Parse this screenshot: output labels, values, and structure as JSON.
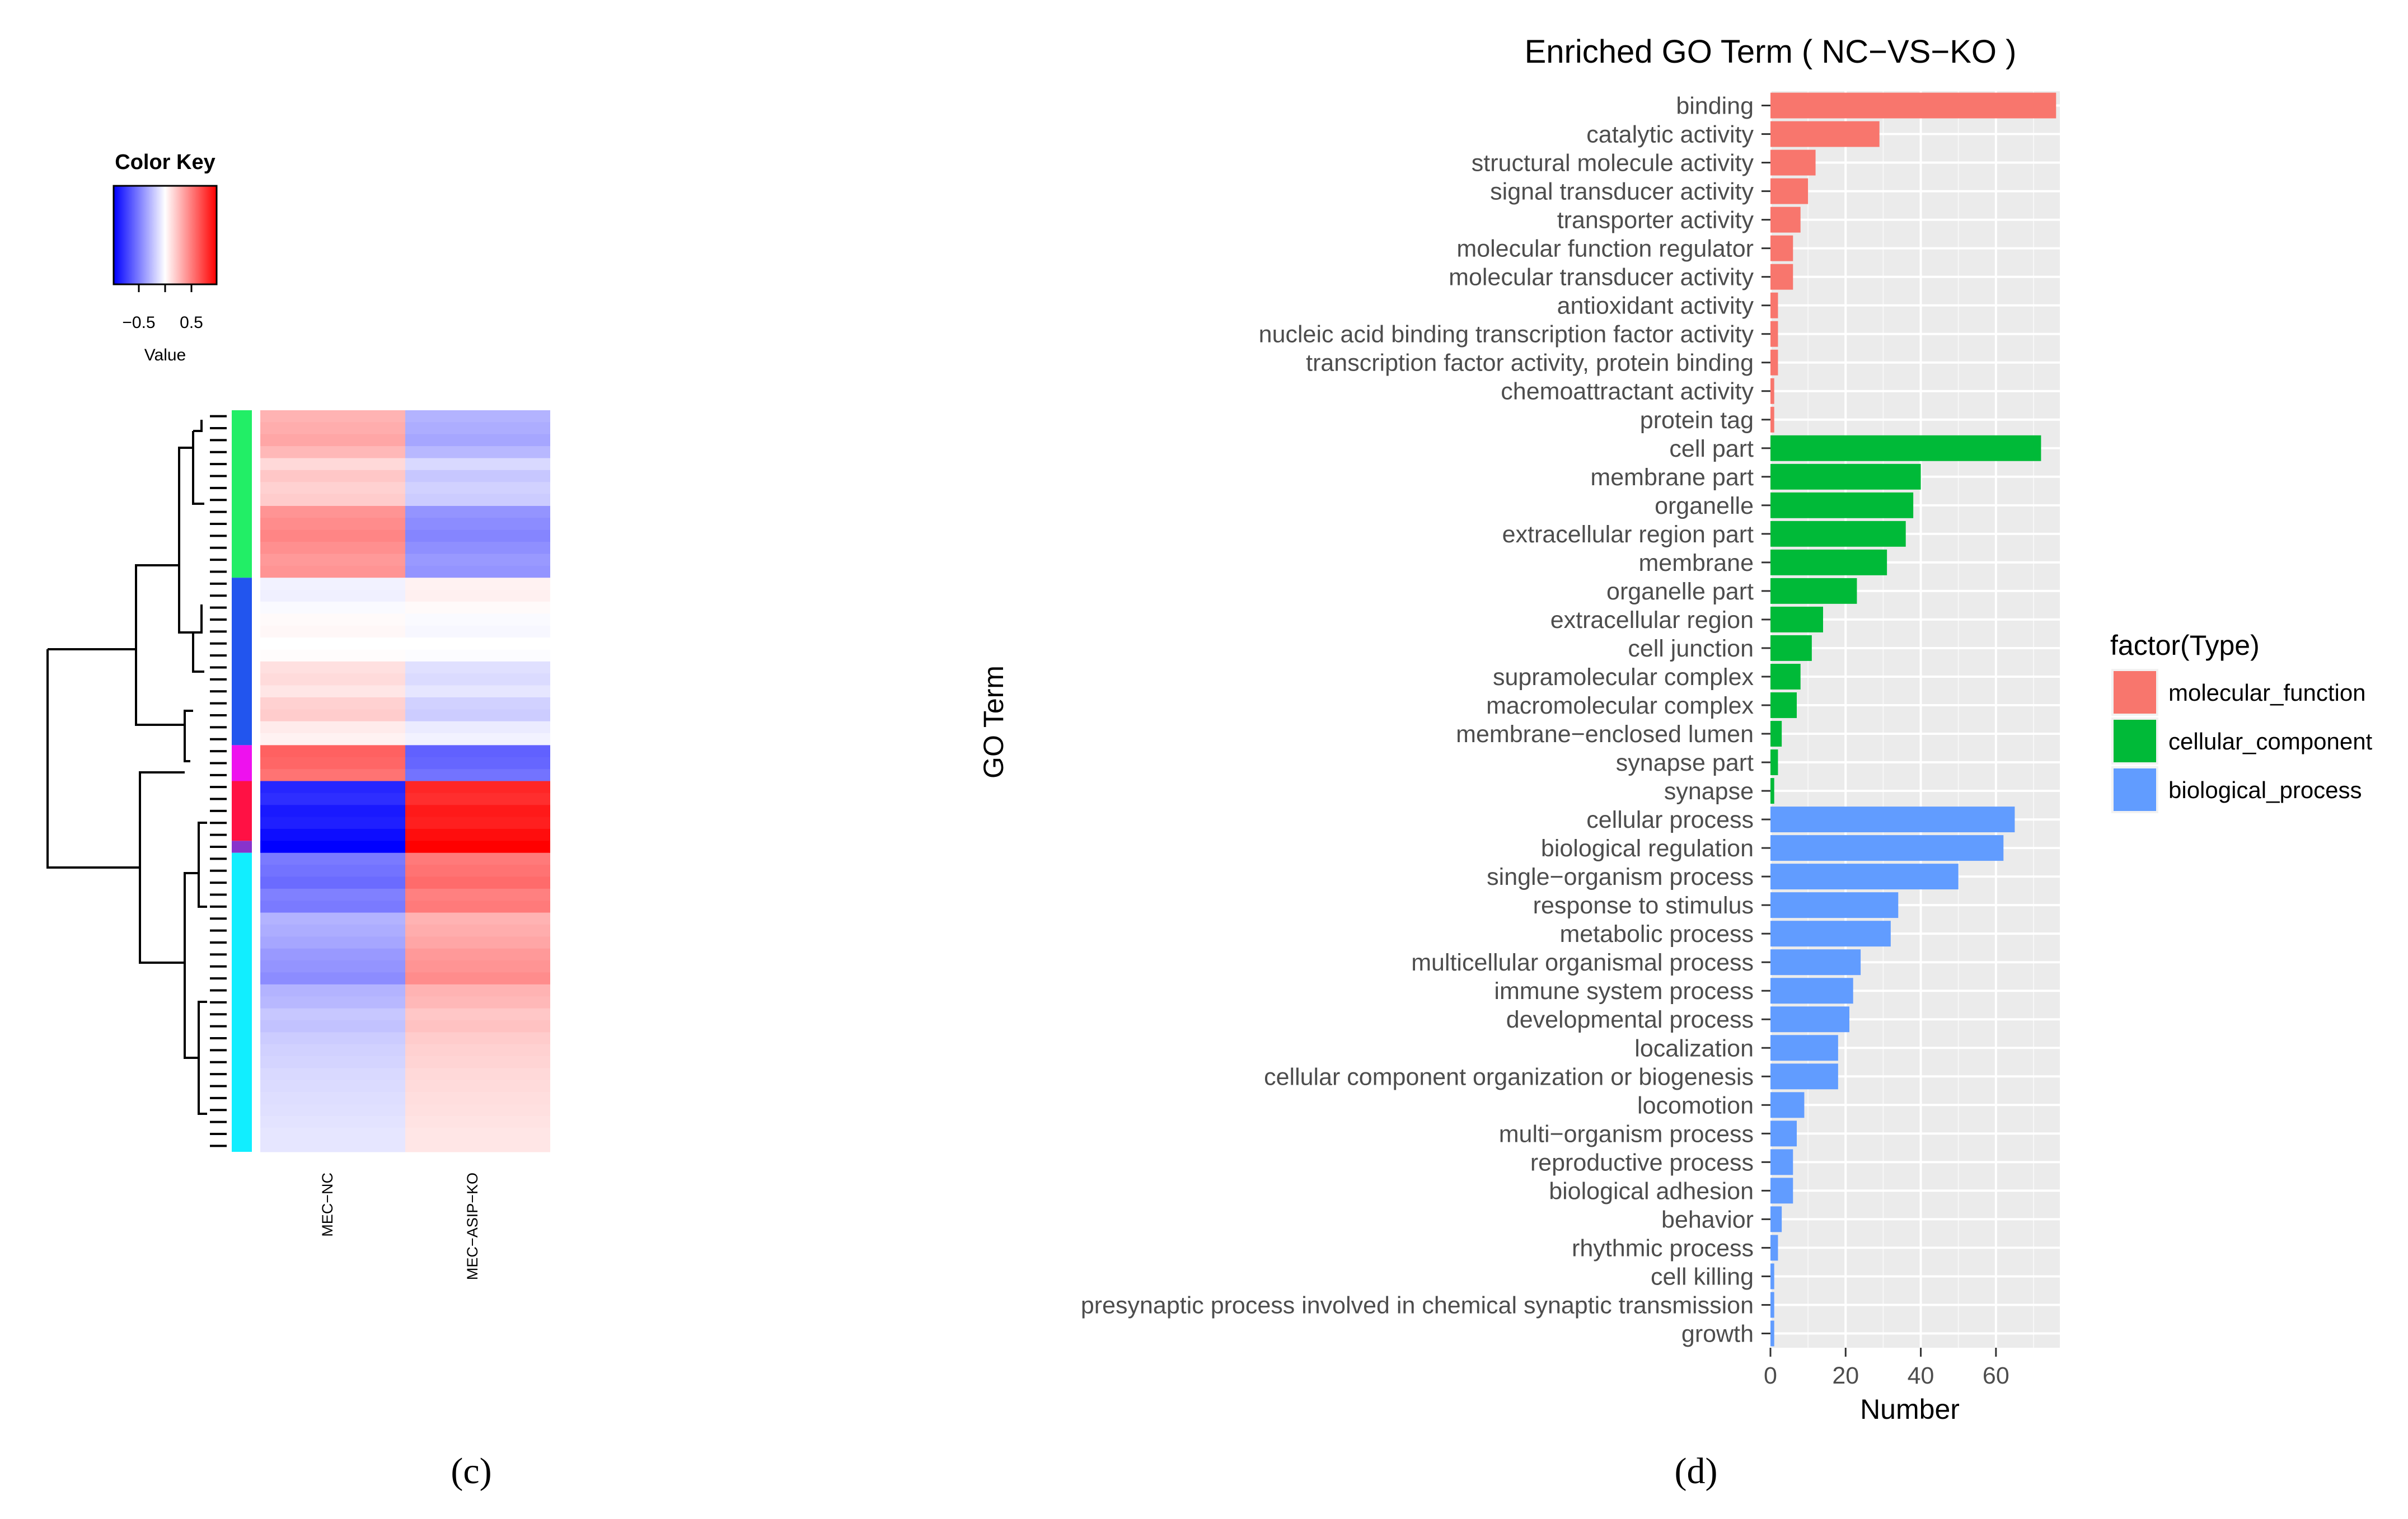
{
  "panel_c": {
    "label": "(c)",
    "color_key": {
      "title": "Color Key",
      "ticks": [
        "−0.5",
        "0.5"
      ],
      "axis_label": "Value",
      "low_color": "#0000ff",
      "mid_color": "#ffffff",
      "high_color": "#ff0000"
    },
    "columns": [
      "MEC−NC",
      "MEC−ASIP−KO"
    ],
    "clusters": [
      {
        "color": "#22ee66",
        "rows": [
          0.3,
          0.32,
          0.35,
          0.28,
          0.15,
          0.22,
          0.18,
          0.2,
          0.42,
          0.45,
          0.48,
          0.44,
          0.4,
          0.42
        ]
      },
      {
        "color": "#2255ee",
        "rows": [
          -0.05,
          -0.06,
          -0.02,
          0.02,
          0.03,
          0.0,
          0.01,
          0.12,
          0.14,
          0.1,
          0.18,
          0.2,
          0.08,
          0.05
        ]
      },
      {
        "color": "#ee11ee",
        "rows": [
          0.62,
          0.6,
          0.55
        ]
      },
      {
        "color": "#ff1144",
        "rows": [
          -0.85,
          -0.82,
          -0.9,
          -0.88,
          -0.95
        ]
      },
      {
        "color": "#8833cc",
        "rows": [
          -1.0
        ]
      },
      {
        "color": "#11eeff",
        "rows": [
          -0.52,
          -0.55,
          -0.58,
          -0.5,
          -0.52,
          -0.3,
          -0.32,
          -0.35,
          -0.4,
          -0.42,
          -0.45,
          -0.3,
          -0.28,
          -0.22,
          -0.24,
          -0.2,
          -0.18,
          -0.17,
          -0.15,
          -0.14,
          -0.13,
          -0.12,
          -0.11,
          -0.1,
          -0.1
        ]
      }
    ]
  },
  "panel_d": {
    "label": "(d)",
    "legend_title": "factor(Type)"
  },
  "chart_data": {
    "type": "bar",
    "orientation": "horizontal",
    "title": "Enriched GO Term ( NC−VS−KO )",
    "xlabel": "Number",
    "ylabel": "GO Term",
    "xlim": [
      0,
      77
    ],
    "xticks": [
      "0",
      "20",
      "40",
      "60"
    ],
    "grid": true,
    "legend_position": "right",
    "series": [
      {
        "name": "molecular_function",
        "color": "#f8766d",
        "categories": [
          "binding",
          "catalytic activity",
          "structural molecule activity",
          "signal transducer activity",
          "transporter activity",
          "molecular function regulator",
          "molecular transducer activity",
          "antioxidant activity",
          "nucleic acid binding transcription factor activity",
          "transcription factor activity, protein binding",
          "chemoattractant activity",
          "protein tag"
        ],
        "values": [
          76,
          29,
          12,
          10,
          8,
          6,
          6,
          2,
          2,
          2,
          1,
          1
        ]
      },
      {
        "name": "cellular_component",
        "color": "#00ba38",
        "categories": [
          "cell part",
          "membrane part",
          "organelle",
          "extracellular region part",
          "membrane",
          "organelle part",
          "extracellular region",
          "cell junction",
          "supramolecular complex",
          "macromolecular complex",
          "membrane−enclosed lumen",
          "synapse part",
          "synapse"
        ],
        "values": [
          72,
          40,
          38,
          36,
          31,
          23,
          14,
          11,
          8,
          7,
          3,
          2,
          1
        ]
      },
      {
        "name": "biological_process",
        "color": "#619cff",
        "categories": [
          "cellular process",
          "biological regulation",
          "single−organism process",
          "response to stimulus",
          "metabolic process",
          "multicellular organismal process",
          "immune system process",
          "developmental process",
          "localization",
          "cellular component organization or biogenesis",
          "locomotion",
          "multi−organism process",
          "reproductive process",
          "biological adhesion",
          "behavior",
          "rhythmic process",
          "cell killing",
          "presynaptic process involved in chemical synaptic transmission",
          "growth"
        ],
        "values": [
          65,
          62,
          50,
          34,
          32,
          24,
          22,
          21,
          18,
          18,
          9,
          7,
          6,
          6,
          3,
          2,
          1,
          1,
          1
        ]
      }
    ]
  }
}
